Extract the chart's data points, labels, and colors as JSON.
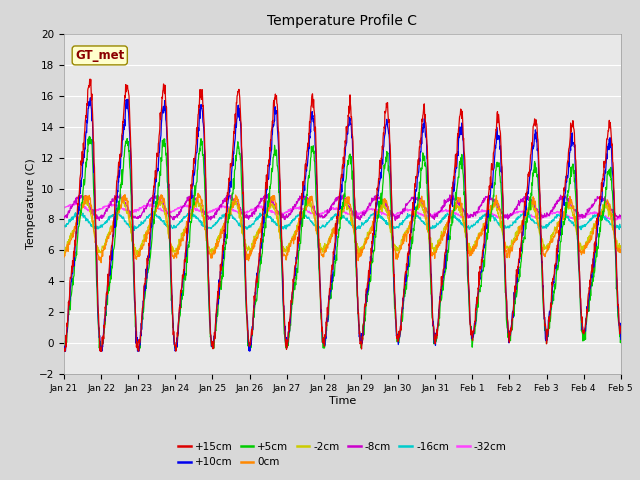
{
  "title": "Temperature Profile C",
  "xlabel": "Time",
  "ylabel": "Temperature (C)",
  "ylim": [
    -2,
    20
  ],
  "gt_met_label": "GT_met",
  "series_labels": [
    "+15cm",
    "+10cm",
    "+5cm",
    "0cm",
    "-2cm",
    "-8cm",
    "-16cm",
    "-32cm"
  ],
  "series_colors": [
    "#dd0000",
    "#0000ee",
    "#00cc00",
    "#ff8800",
    "#cccc00",
    "#cc00cc",
    "#00cccc",
    "#ff44ff"
  ],
  "background_color": "#e8e8e8",
  "tick_labels": [
    "Jan 21",
    "Jan 22",
    "Jan 23",
    "Jan 24",
    "Jan 25",
    "Jan 26",
    "Jan 27",
    "Jan 28",
    "Jan 29",
    "Jan 30",
    "Jan 31",
    "Feb 1",
    "Feb 2",
    "Feb 3",
    "Feb 4",
    "Feb 5"
  ],
  "n_points": 1500
}
